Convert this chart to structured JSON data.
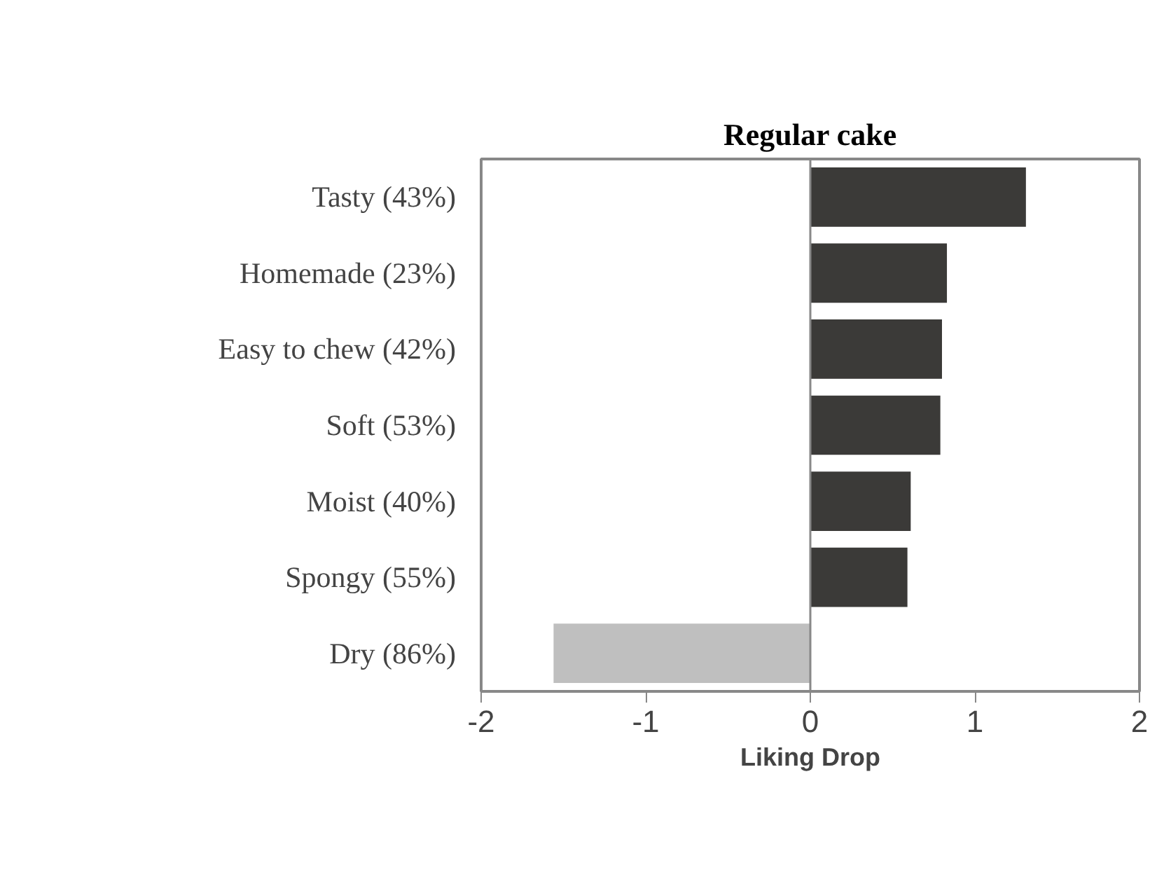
{
  "chart_data": {
    "type": "bar",
    "orientation": "horizontal",
    "title": "Regular cake",
    "xlabel": "Liking Drop",
    "categories": [
      "Tasty (43%)",
      "Homemade (23%)",
      "Easy to chew (42%)",
      "Soft (53%)",
      "Moist (40%)",
      "Spongy (55%)",
      "Dry (86%)"
    ],
    "values": [
      1.31,
      0.83,
      0.8,
      0.79,
      0.61,
      0.59,
      -1.56
    ],
    "colors": [
      "#3b3a38",
      "#3b3a38",
      "#3b3a38",
      "#3b3a38",
      "#3b3a38",
      "#3b3a38",
      "#bfbfbf"
    ],
    "ref_lines": [
      {
        "axis": "x",
        "value": 0,
        "color": "#888888"
      }
    ],
    "xlim": [
      -2,
      2
    ],
    "xticks": [
      -2,
      -1,
      0,
      1,
      2
    ],
    "grid": false
  }
}
